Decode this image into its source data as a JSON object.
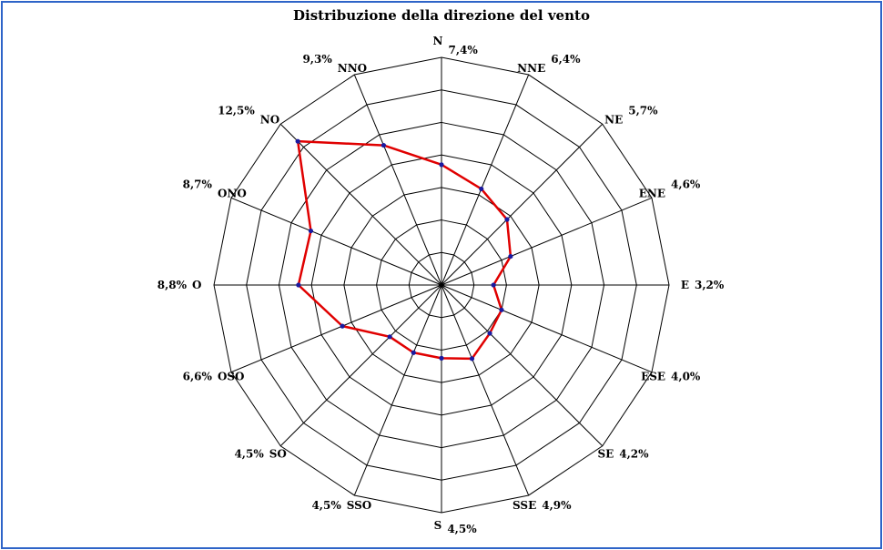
{
  "chart_data": {
    "type": "radar",
    "title": "Distribuzione della direzione del vento",
    "categories": [
      "N",
      "NNE",
      "NE",
      "ENE",
      "E",
      "ESE",
      "SE",
      "SSE",
      "S",
      "SSO",
      "SO",
      "OSO",
      "O",
      "ONO",
      "NO",
      "NNO"
    ],
    "values": [
      7.4,
      6.4,
      5.7,
      4.6,
      3.2,
      4.0,
      4.2,
      4.9,
      4.5,
      4.5,
      4.5,
      6.6,
      8.8,
      8.7,
      12.5,
      9.3
    ],
    "value_labels": [
      "7,4%",
      "6,4%",
      "5,7%",
      "4,6%",
      "3,2%",
      "4,0%",
      "4,2%",
      "4,9%",
      "4,5%",
      "4,5%",
      "4,5%",
      "6,6%",
      "8,8%",
      "8,7%",
      "12,5%",
      "9,3%"
    ],
    "rlim": [
      0,
      14
    ],
    "rings": 7,
    "grid": true,
    "colors": {
      "line": "#e00000",
      "marker": "#1a1aa0",
      "grid": "#000000",
      "frame": "#2e64c8"
    }
  }
}
